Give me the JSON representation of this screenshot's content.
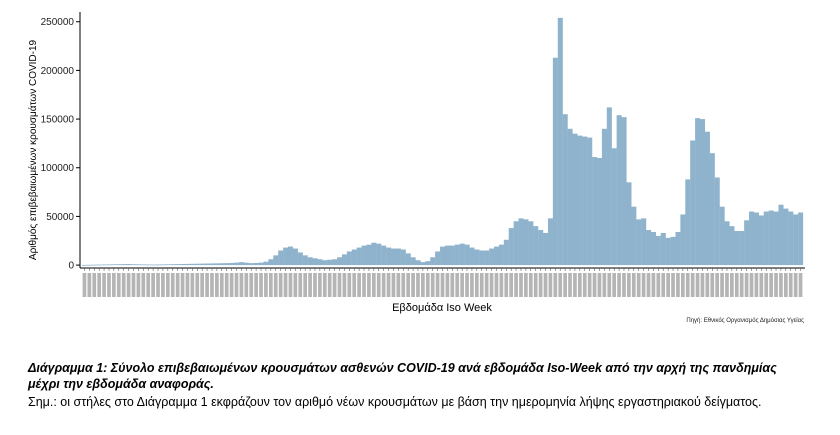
{
  "chart_data": {
    "type": "bar",
    "ylabel": "Αριθμός επιβεβαιωμένων κρουσμάτων COVID-19",
    "xlabel": "Εβδομάδα Iso Week",
    "yticks": [
      0,
      50000,
      100000,
      150000,
      200000,
      250000
    ],
    "ylim": [
      -3000,
      260000
    ],
    "grid": false,
    "bar_color": "#8fb3cc",
    "values": [
      200,
      300,
      400,
      500,
      600,
      700,
      800,
      900,
      1000,
      1100,
      900,
      800,
      700,
      600,
      500,
      600,
      700,
      800,
      900,
      1000,
      1100,
      1200,
      1300,
      1400,
      1500,
      1600,
      1700,
      1800,
      1900,
      2000,
      2200,
      2500,
      3000,
      2500,
      2000,
      2200,
      2500,
      3500,
      6000,
      10000,
      15000,
      18000,
      19000,
      17000,
      13000,
      10000,
      8000,
      7000,
      6000,
      5000,
      5500,
      6000,
      8000,
      11000,
      14000,
      16000,
      18000,
      20000,
      21000,
      23000,
      22000,
      20000,
      18000,
      17000,
      17000,
      16000,
      12000,
      8000,
      5000,
      3000,
      4000,
      8000,
      14000,
      19000,
      20000,
      20000,
      21000,
      22000,
      21000,
      18000,
      16000,
      15000,
      15000,
      17000,
      19000,
      21000,
      26000,
      38000,
      45000,
      48000,
      47000,
      45000,
      40000,
      36000,
      33000,
      48000,
      213000,
      254000,
      155000,
      140000,
      135000,
      133000,
      132000,
      131000,
      111000,
      110000,
      140000,
      162000,
      120000,
      154000,
      152000,
      85000,
      60000,
      47000,
      48000,
      36000,
      34000,
      30000,
      33000,
      28000,
      29000,
      34000,
      52000,
      88000,
      128000,
      151000,
      150000,
      137000,
      115000,
      90000,
      60000,
      45000,
      40000,
      35000,
      35000,
      46000,
      55000,
      54000,
      51000,
      55000,
      56000,
      55000,
      62000,
      58000,
      55000,
      52000,
      54000
    ],
    "tick_labels_illegible": true
  },
  "source": "Πηγή: Εθνικός Οργανισμός Δημόσιας Υγείας",
  "caption": {
    "title": "Διάγραμμα 1: Σύνολο επιβεβαιωμένων κρουσμάτων ασθενών COVID-19 ανά εβδομάδα Iso-Week από την αρχή της πανδημίας μέχρι την εβδομάδα αναφοράς.",
    "note": "Σημ.: οι στήλες στο Διάγραμμα 1 εκφράζουν τον αριθμό νέων κρουσμάτων με βάση την ημερομηνία λήψης εργαστηριακού δείγματος."
  }
}
